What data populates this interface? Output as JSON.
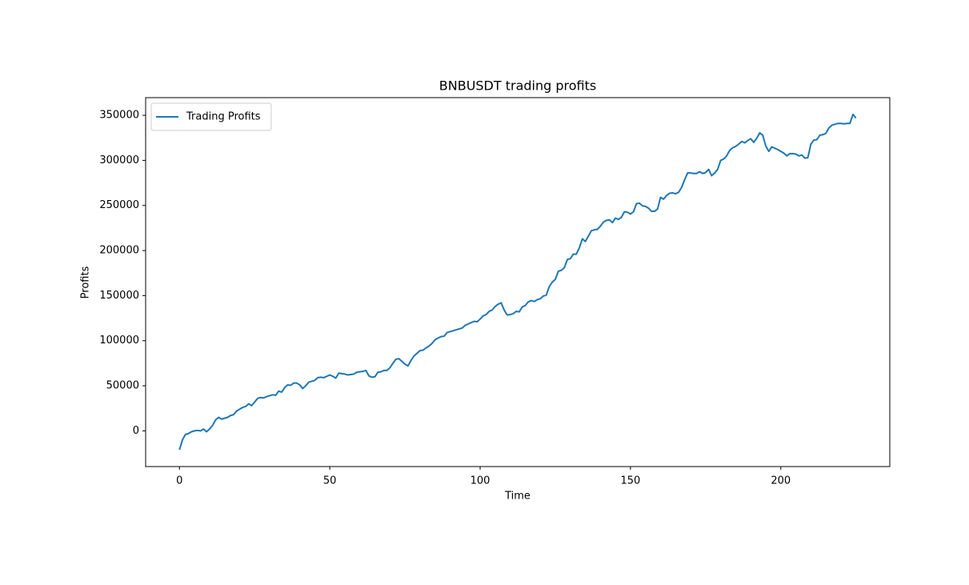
{
  "chart_data": {
    "type": "line",
    "title": "BNBUSDT trading profits",
    "x_label": "Time",
    "y_label": "Profits",
    "x": [
      0,
      1,
      2,
      3,
      4,
      5,
      6,
      7,
      8,
      9,
      10,
      11,
      12,
      13,
      14,
      15,
      16,
      17,
      18,
      19,
      20,
      21,
      22,
      23,
      24,
      25,
      26,
      27,
      28,
      29,
      30,
      31,
      32,
      33,
      34,
      35,
      36,
      37,
      38,
      39,
      40,
      41,
      42,
      43,
      44,
      45,
      46,
      47,
      48,
      49,
      50,
      51,
      52,
      53,
      54,
      55,
      56,
      57,
      58,
      59,
      60,
      61,
      62,
      63,
      64,
      65,
      66,
      67,
      68,
      69,
      70,
      71,
      72,
      73,
      74,
      75,
      76,
      77,
      78,
      79,
      80,
      81,
      82,
      83,
      84,
      85,
      86,
      87,
      88,
      89,
      90,
      91,
      92,
      93,
      94,
      95,
      96,
      97,
      98,
      99,
      100,
      101,
      102,
      103,
      104,
      105,
      106,
      107,
      108,
      109,
      110,
      111,
      112,
      113,
      114,
      115,
      116,
      117,
      118,
      119,
      120,
      121,
      122,
      123,
      124,
      125,
      126,
      127,
      128,
      129,
      130,
      131,
      132,
      133,
      134,
      135,
      136,
      137,
      138,
      139,
      140,
      141,
      142,
      143,
      144,
      145,
      146,
      147,
      148,
      149,
      150,
      151,
      152,
      153,
      154,
      155,
      156,
      157,
      158,
      159,
      160,
      161,
      162,
      163,
      164,
      165,
      166,
      167,
      168,
      169,
      170,
      171,
      172,
      173,
      174,
      175,
      176,
      177,
      178,
      179,
      180,
      181,
      182,
      183,
      184,
      185,
      186,
      187,
      188,
      189,
      190,
      191,
      192,
      193,
      194,
      195,
      196,
      197,
      198,
      199,
      200,
      201,
      202,
      203,
      204,
      205,
      206,
      207,
      208,
      209,
      210,
      211,
      212,
      213,
      214,
      215,
      216,
      217,
      218,
      219,
      220,
      221,
      222,
      223,
      224,
      225
    ],
    "series": [
      {
        "name": "Trading Profits",
        "color": "#1f77b4",
        "values": [
          -21000,
          -10000,
          -4000,
          -3000,
          -1000,
          0,
          500,
          0,
          2000,
          -1000,
          2000,
          6000,
          12000,
          15000,
          13000,
          14000,
          15000,
          17000,
          18000,
          22000,
          24000,
          26000,
          27000,
          30000,
          28000,
          32000,
          36000,
          37000,
          36500,
          38000,
          39000,
          40000,
          39500,
          44000,
          43000,
          48000,
          51000,
          50500,
          53000,
          53000,
          51000,
          47000,
          50000,
          54000,
          55000,
          56000,
          59000,
          59500,
          59000,
          60500,
          62000,
          60500,
          58500,
          64000,
          63500,
          63000,
          62000,
          62500,
          63000,
          65000,
          65500,
          66000,
          67000,
          61000,
          59500,
          60000,
          65000,
          65500,
          67000,
          67000,
          70000,
          75000,
          79500,
          80000,
          77000,
          74000,
          72000,
          78000,
          83000,
          86000,
          89000,
          89500,
          92000,
          94000,
          97000,
          101000,
          103000,
          104500,
          105000,
          109000,
          110000,
          111000,
          112000,
          113000,
          114000,
          117000,
          118500,
          120000,
          121500,
          121000,
          124000,
          127500,
          129000,
          132500,
          134000,
          138000,
          140500,
          142000,
          134000,
          128500,
          129000,
          130000,
          132500,
          132000,
          137500,
          139000,
          143000,
          144500,
          143500,
          145500,
          146500,
          149500,
          150500,
          160000,
          165000,
          168000,
          177000,
          178000,
          181000,
          190000,
          191000,
          196000,
          196000,
          203000,
          213000,
          210000,
          216000,
          222000,
          223000,
          223500,
          227000,
          231500,
          233500,
          234000,
          231000,
          236000,
          234500,
          237000,
          243000,
          242500,
          240500,
          243000,
          252000,
          252500,
          249500,
          249000,
          247000,
          243500,
          243500,
          246000,
          259000,
          257000,
          261000,
          263500,
          264000,
          263000,
          264500,
          270000,
          278500,
          286000,
          286000,
          285500,
          285500,
          287500,
          285500,
          286500,
          290000,
          283000,
          286000,
          290000,
          300000,
          301500,
          305000,
          311000,
          314000,
          315500,
          318000,
          321000,
          319500,
          322000,
          324000,
          320000,
          324500,
          330500,
          328000,
          316000,
          310000,
          315000,
          313500,
          312000,
          310000,
          308000,
          305000,
          307500,
          307500,
          307000,
          305000,
          306000,
          302500,
          303000,
          318000,
          322500,
          323000,
          328000,
          328500,
          330000,
          336000,
          339000,
          340000,
          341000,
          341000,
          340500,
          341000,
          341000,
          351000,
          347000
        ]
      }
    ],
    "xlim": [
      -11.25,
      236.25
    ],
    "ylim": [
      -39600,
      369600
    ],
    "xticks": [
      0,
      50,
      100,
      150,
      200
    ],
    "yticks": [
      0,
      50000,
      100000,
      150000,
      200000,
      250000,
      300000,
      350000
    ],
    "legend": "upper left"
  }
}
